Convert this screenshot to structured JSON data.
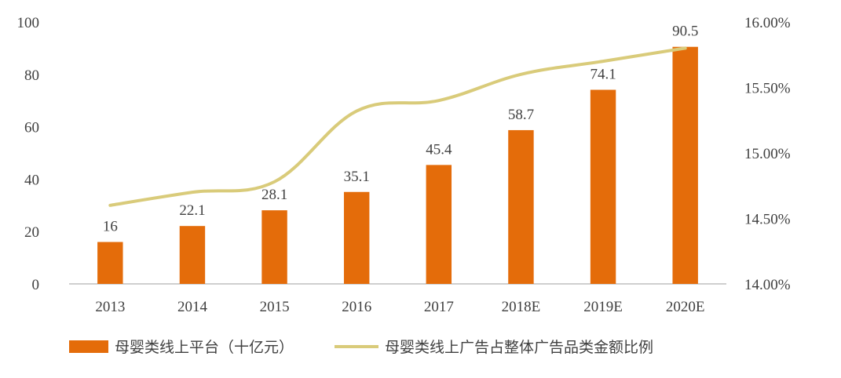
{
  "chart_data": {
    "type": "bar",
    "categories": [
      "2013",
      "2014",
      "2015",
      "2016",
      "2017",
      "2018E",
      "2019E",
      "2020E"
    ],
    "series": [
      {
        "name": "母婴类线上平台（十亿元）",
        "type": "bar",
        "axis": "left",
        "values": [
          16,
          22.1,
          28.1,
          35.1,
          45.4,
          58.7,
          74.1,
          90.5
        ],
        "data_labels": [
          "16",
          "22.1",
          "28.1",
          "35.1",
          "45.4",
          "58.7",
          "74.1",
          "90.5"
        ]
      },
      {
        "name": "母婴类线上广告占整体广告品类金额比例",
        "type": "line",
        "axis": "right",
        "values": [
          14.6,
          14.7,
          14.78,
          15.32,
          15.4,
          15.6,
          15.7,
          15.8
        ]
      }
    ],
    "y_left": {
      "ylim": [
        0,
        100
      ],
      "ticks": [
        "0",
        "20",
        "40",
        "60",
        "80",
        "100"
      ]
    },
    "y_right": {
      "ylim": [
        14.0,
        16.0
      ],
      "unit": "%",
      "ticks": [
        "14.00%",
        "14.50%",
        "15.00%",
        "15.50%",
        "16.00%"
      ]
    },
    "grid": false,
    "legend": "bottom",
    "title": "",
    "xlabel": "",
    "ylabel": ""
  },
  "colors": {
    "bar": "#E46C0A",
    "line": "#D9CB7A",
    "axis": "#BFBFBF",
    "text": "#404040"
  }
}
